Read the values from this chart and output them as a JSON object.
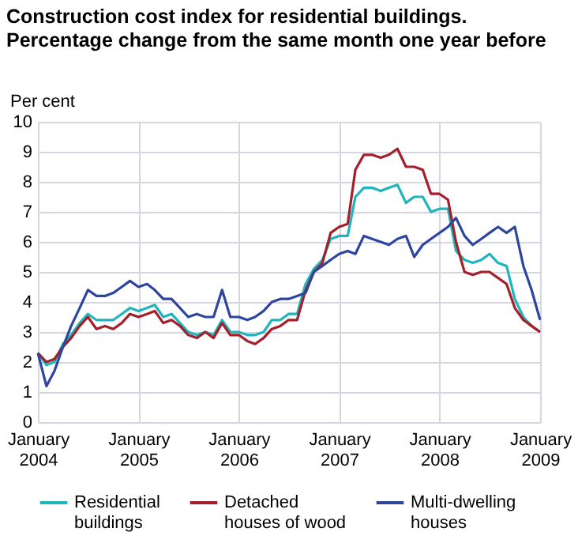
{
  "chart_data": {
    "type": "line",
    "title": "Construction cost index for residential buildings. Percentage change from the same month one year before",
    "ylabel": "Per cent",
    "x": [
      "2004-01",
      "2004-02",
      "2004-03",
      "2004-04",
      "2004-05",
      "2004-06",
      "2004-07",
      "2004-08",
      "2004-09",
      "2004-10",
      "2004-11",
      "2004-12",
      "2005-01",
      "2005-02",
      "2005-03",
      "2005-04",
      "2005-05",
      "2005-06",
      "2005-07",
      "2005-08",
      "2005-09",
      "2005-10",
      "2005-11",
      "2005-12",
      "2006-01",
      "2006-02",
      "2006-03",
      "2006-04",
      "2006-05",
      "2006-06",
      "2006-07",
      "2006-08",
      "2006-09",
      "2006-10",
      "2006-11",
      "2006-12",
      "2007-01",
      "2007-02",
      "2007-03",
      "2007-04",
      "2007-05",
      "2007-06",
      "2007-07",
      "2007-08",
      "2007-09",
      "2007-10",
      "2007-11",
      "2007-12",
      "2008-01",
      "2008-02",
      "2008-03",
      "2008-04",
      "2008-05",
      "2008-06",
      "2008-07",
      "2008-08",
      "2008-09",
      "2008-10",
      "2008-11",
      "2008-12",
      "2009-01"
    ],
    "series": [
      {
        "name": "Residential buildings",
        "color": "#1fb5bd",
        "values": [
          2.3,
          1.9,
          2.0,
          2.6,
          2.9,
          3.3,
          3.6,
          3.4,
          3.4,
          3.4,
          3.6,
          3.8,
          3.7,
          3.8,
          3.9,
          3.5,
          3.6,
          3.3,
          3.0,
          2.9,
          3.0,
          2.9,
          3.4,
          3.0,
          3.0,
          2.9,
          2.9,
          3.0,
          3.4,
          3.4,
          3.6,
          3.6,
          4.6,
          5.1,
          5.4,
          6.1,
          6.2,
          6.2,
          7.5,
          7.8,
          7.8,
          7.7,
          7.8,
          7.9,
          7.3,
          7.5,
          7.5,
          7.0,
          7.1,
          7.1,
          5.7,
          5.4,
          5.3,
          5.4,
          5.6,
          5.3,
          5.2,
          4.1,
          3.5,
          3.2,
          3.0
        ]
      },
      {
        "name": "Detached houses of wood",
        "color": "#a3202a",
        "values": [
          2.3,
          2.0,
          2.1,
          2.5,
          2.8,
          3.2,
          3.5,
          3.1,
          3.2,
          3.1,
          3.3,
          3.6,
          3.5,
          3.6,
          3.7,
          3.3,
          3.4,
          3.2,
          2.9,
          2.8,
          3.0,
          2.8,
          3.3,
          2.9,
          2.9,
          2.7,
          2.6,
          2.8,
          3.1,
          3.2,
          3.4,
          3.4,
          4.4,
          5.0,
          5.3,
          6.3,
          6.5,
          6.6,
          8.4,
          8.9,
          8.9,
          8.8,
          8.9,
          9.1,
          8.5,
          8.5,
          8.4,
          7.6,
          7.6,
          7.4,
          6.0,
          5.0,
          4.9,
          5.0,
          5.0,
          4.8,
          4.6,
          3.8,
          3.4,
          3.2,
          3.0
        ]
      },
      {
        "name": "Multi-dwelling houses",
        "color": "#2e45a0",
        "values": [
          2.3,
          1.2,
          1.7,
          2.5,
          3.2,
          3.8,
          4.4,
          4.2,
          4.2,
          4.3,
          4.5,
          4.7,
          4.5,
          4.6,
          4.4,
          4.1,
          4.1,
          3.8,
          3.5,
          3.6,
          3.5,
          3.5,
          4.4,
          3.5,
          3.5,
          3.4,
          3.5,
          3.7,
          4.0,
          4.1,
          4.1,
          4.2,
          4.3,
          5.0,
          5.2,
          5.4,
          5.6,
          5.7,
          5.6,
          6.2,
          6.1,
          6.0,
          5.9,
          6.1,
          6.2,
          5.5,
          5.9,
          6.1,
          6.3,
          6.5,
          6.8,
          6.2,
          5.9,
          6.1,
          6.3,
          6.5,
          6.3,
          6.5,
          5.2,
          4.4,
          3.4
        ]
      }
    ],
    "xlim": [
      "2004-01",
      "2009-01"
    ],
    "xticks": [
      {
        "value": "2004-01",
        "label": "January 2004"
      },
      {
        "value": "2005-01",
        "label": "January 2005"
      },
      {
        "value": "2006-01",
        "label": "January 2006"
      },
      {
        "value": "2007-01",
        "label": "January 2007"
      },
      {
        "value": "2008-01",
        "label": "January 2008"
      },
      {
        "value": "2009-01",
        "label": "January 2009"
      }
    ],
    "ylim": [
      0,
      10
    ],
    "yticks": [
      0,
      1,
      2,
      3,
      4,
      5,
      6,
      7,
      8,
      9,
      10
    ],
    "grid": true,
    "legend": "bottom",
    "line_style": "solid",
    "marker": "none"
  }
}
